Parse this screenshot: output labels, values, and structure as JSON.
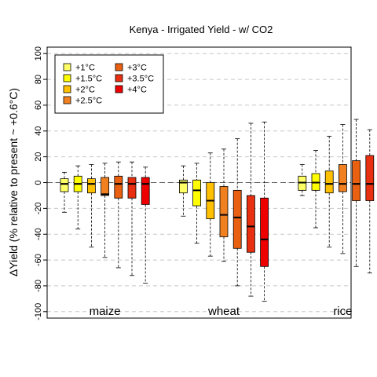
{
  "chart_data": {
    "type": "boxplot",
    "title": "Kenya - Irrigated Yield - w/ CO2",
    "ylabel": "ΔYield (% relative to present ~ +0.6°C)",
    "ylim": [
      -105,
      105
    ],
    "yticks": [
      -100,
      -80,
      -60,
      -40,
      -20,
      0,
      20,
      40,
      60,
      80,
      100
    ],
    "grid": "horizontal dashed",
    "legend_position": "top-left",
    "legend": [
      {
        "label": "+1°C",
        "color": "#FFFF66"
      },
      {
        "label": "+1.5°C",
        "color": "#FFFF00"
      },
      {
        "label": "+2°C",
        "color": "#FFC000"
      },
      {
        "label": "+2.5°C",
        "color": "#F08020"
      },
      {
        "label": "+3°C",
        "color": "#E86010"
      },
      {
        "label": "+3.5°C",
        "color": "#E83010"
      },
      {
        "label": "+4°C",
        "color": "#EE0000"
      }
    ],
    "groups": [
      {
        "name": "maize",
        "boxes": [
          {
            "level": "+1°C",
            "min": -23,
            "q1": -7,
            "median": -1,
            "q3": 3,
            "max": 8
          },
          {
            "level": "+1.5°C",
            "min": -36,
            "q1": -7,
            "median": -1,
            "q3": 5,
            "max": 13
          },
          {
            "level": "+2°C",
            "min": -50,
            "q1": -8,
            "median": -1,
            "q3": 3,
            "max": 14
          },
          {
            "level": "+2.5°C",
            "min": -58,
            "q1": -10,
            "median": -9,
            "q3": 4,
            "max": 15
          },
          {
            "level": "+3°C",
            "min": -66,
            "q1": -12,
            "median": -1,
            "q3": 5,
            "max": 16
          },
          {
            "level": "+3.5°C",
            "min": -72,
            "q1": -12,
            "median": -1,
            "q3": 4,
            "max": 16
          },
          {
            "level": "+4°C",
            "min": -78,
            "q1": -17,
            "median": -1,
            "q3": 4,
            "max": 12
          }
        ]
      },
      {
        "name": "wheat",
        "boxes": [
          {
            "level": "+1°C",
            "min": -26,
            "q1": -8,
            "median": 0,
            "q3": 2,
            "max": 13
          },
          {
            "level": "+1.5°C",
            "min": -47,
            "q1": -18,
            "median": -6,
            "q3": 2,
            "max": 15
          },
          {
            "level": "+2°C",
            "min": -57,
            "q1": -28,
            "median": -14,
            "q3": 0,
            "max": 23
          },
          {
            "level": "+2.5°C",
            "min": -61,
            "q1": -42,
            "median": -25,
            "q3": -3,
            "max": 26
          },
          {
            "level": "+3°C",
            "min": -80,
            "q1": -51,
            "median": -27,
            "q3": -6,
            "max": 34
          },
          {
            "level": "+3.5°C",
            "min": -88,
            "q1": -54,
            "median": -34,
            "q3": -10,
            "max": 46
          },
          {
            "level": "+4°C",
            "min": -92,
            "q1": -65,
            "median": -44,
            "q3": -12,
            "max": 47
          }
        ]
      },
      {
        "name": "rice",
        "boxes": [
          {
            "level": "+1°C",
            "min": -10,
            "q1": -6,
            "median": 0,
            "q3": 5,
            "max": 14
          },
          {
            "level": "+1.5°C",
            "min": -35,
            "q1": -6,
            "median": 0,
            "q3": 7,
            "max": 25
          },
          {
            "level": "+2°C",
            "min": -50,
            "q1": -8,
            "median": -1,
            "q3": 9,
            "max": 36
          },
          {
            "level": "+2.5°C",
            "min": -55,
            "q1": -7,
            "median": -1,
            "q3": 14,
            "max": 45
          },
          {
            "level": "+3°C",
            "min": -65,
            "q1": -14,
            "median": -1,
            "q3": 17,
            "max": 49
          },
          {
            "level": "+3.5°C",
            "min": -70,
            "q1": -14,
            "median": -1,
            "q3": 21,
            "max": 41
          },
          {
            "level": "+4°C",
            "min": -76,
            "q1": -15,
            "median": -3,
            "q3": 17,
            "max": 33
          }
        ]
      }
    ]
  }
}
